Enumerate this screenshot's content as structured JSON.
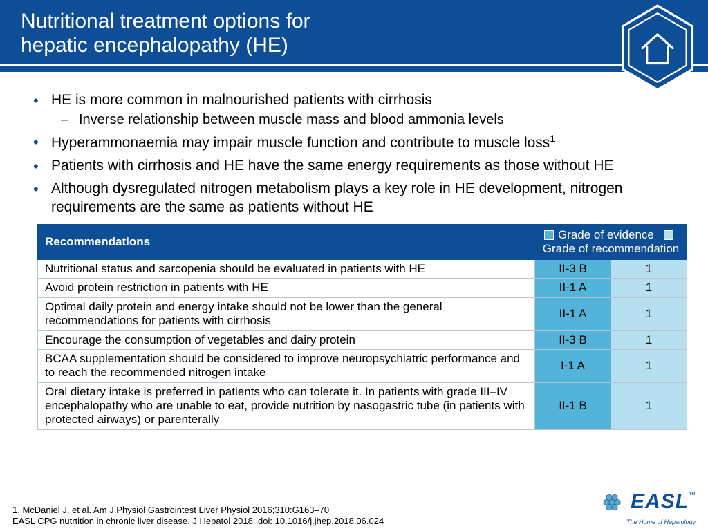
{
  "colors": {
    "brand_blue": "#0e4e96",
    "grade_ev_bg": "#54b3d8",
    "grade_rec_bg": "#b6e0ef",
    "table_border": "#b9c5d3",
    "bg": "#ffffff",
    "text": "#000000"
  },
  "header": {
    "title_line1": "Nutritional treatment options for",
    "title_line2": "hepatic encephalopathy (HE)",
    "home_icon": "home-icon"
  },
  "bullets": [
    {
      "text": "HE is more common in malnourished patients with cirrhosis",
      "sub": [
        "Inverse relationship between muscle mass and blood ammonia levels"
      ]
    },
    {
      "text": "Hyperammonaemia may impair muscle function and contribute to muscle loss",
      "sup": "1"
    },
    {
      "text": "Patients with cirrhosis and HE have the same energy requirements as those without HE"
    },
    {
      "text": "Although dysregulated nitrogen metabolism plays a key role in HE development, nitrogen requirements are the same as patients without HE"
    }
  ],
  "table": {
    "header": {
      "recommendations": "Recommendations",
      "legend_ev": "Grade of evidence",
      "legend_rec": "Grade of recommendation"
    },
    "rows": [
      {
        "rec": "Nutritional status and sarcopenia should be evaluated in patients with HE",
        "ev": "II-3 B",
        "gr": "1"
      },
      {
        "rec": "Avoid protein restriction in patients with HE",
        "ev": "II-1 A",
        "gr": "1"
      },
      {
        "rec": "Optimal daily protein and energy intake should not be lower than the general recommendations for patients with cirrhosis",
        "ev": "II-1 A",
        "gr": "1"
      },
      {
        "rec": "Encourage the consumption of vegetables and dairy protein",
        "ev": "II-3 B",
        "gr": "1"
      },
      {
        "rec": "BCAA supplementation should be considered to improve neuropsychiatric performance and to reach the recommended nitrogen intake",
        "ev": "I-1 A",
        "gr": "1"
      },
      {
        "rec": "Oral dietary intake is preferred in patients who can tolerate it. In patients with grade III–IV encephalopathy who are unable to eat, provide nutrition by nasogastric tube (in patients with protected airways) or parenterally",
        "ev": "II-1 B",
        "gr": "1"
      }
    ]
  },
  "footer": {
    "line1": "1. McDaniel J, et al. Am J Physiol Gastrointest Liver Physiol 2016;310:G163–70",
    "line2": "EASL CPG nutrtition in chronic liver disease. J Hepatol 2018; doi: 10.1016/j.jhep.2018.06.024"
  },
  "logo": {
    "name": "EASL",
    "tagline": "The Home of Hepatology",
    "tm": "™"
  }
}
